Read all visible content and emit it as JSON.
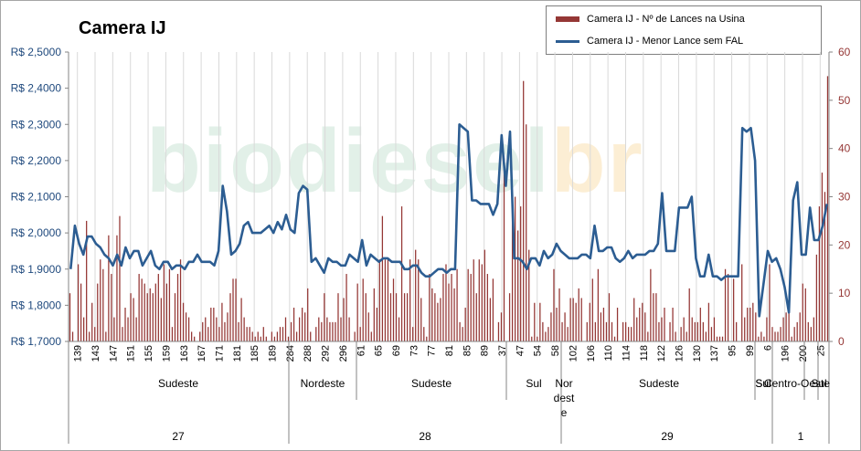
{
  "chart_data": {
    "type": "bar+line",
    "title": "Camera IJ",
    "legend_position": "top-right",
    "series": [
      {
        "name": "Camera IJ - Nº de Lances na Usina",
        "type": "bar",
        "axis": "right",
        "color": "#953735",
        "values": [
          10,
          2,
          0,
          16,
          12,
          5,
          25,
          2,
          8,
          3,
          12,
          17,
          15,
          2,
          22,
          14,
          5,
          22,
          26,
          3,
          7,
          5,
          10,
          9,
          5,
          14,
          13,
          12,
          10,
          11,
          10,
          12,
          14,
          9,
          16,
          12,
          15,
          3,
          10,
          14,
          17,
          8,
          6,
          5,
          2,
          1,
          0,
          2,
          4,
          5,
          3,
          7,
          7,
          5,
          3,
          8,
          4,
          6,
          10,
          13,
          13,
          4,
          9,
          5,
          3,
          3,
          2,
          1,
          2,
          1,
          3,
          1,
          0,
          2,
          1,
          2,
          3,
          3,
          5,
          1,
          4,
          7,
          2,
          5,
          7,
          6,
          11,
          2,
          0,
          3,
          5,
          4,
          10,
          5,
          4,
          4,
          4,
          10,
          5,
          9,
          14,
          5,
          0,
          2,
          12,
          3,
          13,
          10,
          6,
          2,
          11,
          7,
          17,
          26,
          17,
          17,
          10,
          13,
          10,
          5,
          28,
          10,
          10,
          17,
          3,
          19,
          17,
          9,
          3,
          1,
          14,
          11,
          10,
          8,
          9,
          14,
          16,
          12,
          14,
          11,
          15,
          4,
          3,
          7,
          15,
          14,
          17,
          10,
          17,
          16,
          19,
          14,
          9,
          13,
          0,
          4,
          6,
          38,
          0,
          10,
          28,
          30,
          23,
          28,
          54,
          45,
          19,
          1,
          8,
          1,
          8,
          4,
          2,
          3,
          6,
          15,
          7,
          11,
          4,
          6,
          3,
          9,
          9,
          8,
          11,
          9,
          0,
          4,
          8,
          13,
          4,
          15,
          6,
          7,
          4,
          10,
          4,
          1,
          7,
          0,
          4,
          4,
          3,
          3,
          9,
          5,
          7,
          8,
          6,
          2,
          15,
          10,
          10,
          4,
          5,
          7,
          0,
          4,
          7,
          2,
          0,
          3,
          5,
          2,
          11,
          5,
          4,
          4,
          7,
          4,
          2,
          8,
          3,
          5,
          1,
          1,
          1,
          15,
          14,
          0,
          13,
          4,
          0,
          16,
          5,
          7,
          7,
          8,
          6,
          1,
          2,
          1,
          5,
          16,
          3,
          2,
          2,
          3,
          5,
          6,
          8,
          1,
          3,
          4,
          6,
          12,
          11,
          4,
          3,
          5,
          18,
          28,
          35,
          31,
          55
        ]
      },
      {
        "name": "Camera IJ - Menor Lance sem FAL",
        "type": "line",
        "axis": "left",
        "color": "#2c5d92",
        "values": [
          1.9,
          2.02,
          1.97,
          1.94,
          1.99,
          1.99,
          1.97,
          1.96,
          1.94,
          1.93,
          1.91,
          1.94,
          1.91,
          1.96,
          1.93,
          1.95,
          1.95,
          1.91,
          1.93,
          1.95,
          1.91,
          1.9,
          1.92,
          1.92,
          1.9,
          1.91,
          1.91,
          1.9,
          1.92,
          1.92,
          1.94,
          1.92,
          1.92,
          1.92,
          1.91,
          1.95,
          2.13,
          2.06,
          1.94,
          1.95,
          1.97,
          2.02,
          2.03,
          2.0,
          2.0,
          2.0,
          2.01,
          2.02,
          2.0,
          2.03,
          2.01,
          2.05,
          2.01,
          2.0,
          2.11,
          2.13,
          2.12,
          1.92,
          1.93,
          1.91,
          1.89,
          1.93,
          1.92,
          1.92,
          1.91,
          1.91,
          1.94,
          1.93,
          1.92,
          1.98,
          1.91,
          1.94,
          1.93,
          1.92,
          1.93,
          1.93,
          1.92,
          1.92,
          1.92,
          1.9,
          1.9,
          1.91,
          1.91,
          1.89,
          1.88,
          1.88,
          1.89,
          1.9,
          1.9,
          1.89,
          1.9,
          1.9,
          2.3,
          2.29,
          2.28,
          2.09,
          2.09,
          2.08,
          2.08,
          2.08,
          2.05,
          2.08,
          2.27,
          2.13,
          2.28,
          1.93,
          1.93,
          1.92,
          1.9,
          1.93,
          1.93,
          1.91,
          1.95,
          1.93,
          1.94,
          1.97,
          1.95,
          1.94,
          1.93,
          1.93,
          1.93,
          1.94,
          1.94,
          1.93,
          2.02,
          1.95,
          1.95,
          1.96,
          1.96,
          1.93,
          1.92,
          1.93,
          1.95,
          1.93,
          1.94,
          1.94,
          1.94,
          1.95,
          1.95,
          1.97,
          2.11,
          1.95,
          1.95,
          1.95,
          2.07,
          2.07,
          2.07,
          2.1,
          1.93,
          1.88,
          1.88,
          1.94,
          1.88,
          1.88,
          1.87,
          1.88,
          1.88,
          1.88,
          1.88,
          2.29,
          2.28,
          2.29,
          2.2,
          1.77,
          1.86,
          1.95,
          1.92,
          1.93,
          1.9,
          1.85,
          1.78,
          2.09,
          2.14,
          1.94,
          1.94,
          2.07,
          1.98,
          1.98,
          2.02,
          2.08
        ]
      }
    ],
    "x_axis": {
      "category_groups": [
        {
          "month": "27",
          "regions": [
            {
              "region": "Sudeste",
              "lots": [
                "139",
                "143",
                "147",
                "151",
                "155",
                "159",
                "163",
                "167",
                "171",
                "181",
                "185",
                "189"
              ]
            },
            {
              "region": "Nordeste",
              "lots": [
                "284",
                "288",
                "292",
                "296"
              ]
            },
            {
              "region": "Sudeste",
              "lots": [
                "61",
                "65",
                "69",
                "73",
                "77",
                "81",
                "85",
                "89"
              ]
            }
          ]
        },
        {
          "month": "28",
          "regions": [
            {
              "region": "Sul",
              "lots": [
                "37",
                "47",
                "54"
              ]
            },
            {
              "region": "Nor dest e",
              "lots": [
                "58"
              ]
            }
          ]
        },
        {
          "month": "29",
          "regions": [
            {
              "region": "Sudeste",
              "lots": [
                "102",
                "106",
                "110",
                "114",
                "118",
                "122",
                "126",
                "130",
                "137"
              ]
            },
            {
              "region": "Sul",
              "lots": [
                "95",
                "99"
              ]
            }
          ]
        },
        {
          "month": "1",
          "regions": [
            {
              "region": "Sul",
              "lots": [
                "6"
              ]
            },
            {
              "region": "Centro-Oeste",
              "lots": [
                "196",
                "200"
              ]
            },
            {
              "region": "Sul",
              "lots": [
                "25"
              ]
            }
          ]
        }
      ],
      "months": [
        "27",
        "28",
        "29",
        "1"
      ]
    },
    "y_left": {
      "ylim": [
        1.7,
        2.5
      ],
      "tick_labels": [
        "R$ 1,7000",
        "R$ 1,8000",
        "R$ 1,9000",
        "R$ 2,0000",
        "R$ 2,1000",
        "R$ 2,2000",
        "R$ 2,3000",
        "R$ 2,4000",
        "R$ 2,5000"
      ]
    },
    "y_right": {
      "ylim": [
        0,
        60
      ],
      "tick_labels": [
        "0",
        "10",
        "20",
        "30",
        "40",
        "50",
        "60"
      ]
    },
    "grid": "vertical"
  },
  "watermark": {
    "text_main": "biodiesel",
    "text_accent": "br"
  },
  "axis_labels": {
    "lot_ticks": [
      "139",
      "143",
      "147",
      "151",
      "155",
      "159",
      "163",
      "167",
      "171",
      "181",
      "185",
      "189",
      "284",
      "288",
      "292",
      "296",
      "61",
      "65",
      "69",
      "73",
      "77",
      "81",
      "85",
      "89",
      "37",
      "47",
      "54",
      "58",
      "102",
      "106",
      "110",
      "114",
      "118",
      "122",
      "126",
      "130",
      "137",
      "95",
      "99",
      "6",
      "196",
      "200",
      "25"
    ],
    "region_labels": [
      "Sudeste",
      "Nordeste",
      "Sudeste",
      "Sul",
      "Nor",
      "dest",
      "e",
      "Sudeste",
      "Sul",
      "Sul",
      "Centro-Oeste",
      "Sul"
    ],
    "month_labels": [
      "27",
      "28",
      "29",
      "1"
    ]
  }
}
